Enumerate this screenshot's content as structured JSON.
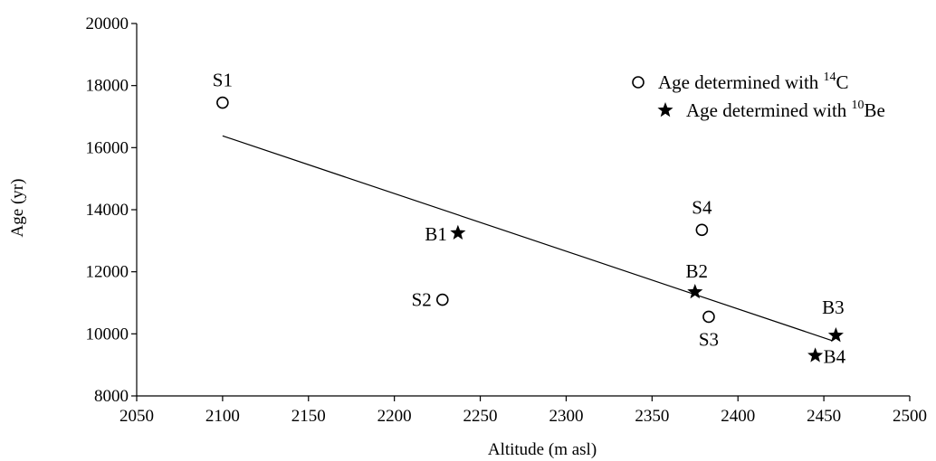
{
  "chart_data": {
    "type": "scatter",
    "xlabel": "Altitude (m asl)",
    "ylabel": "Age (yr)",
    "xlim": [
      2050,
      2500
    ],
    "ylim": [
      8000,
      20000
    ],
    "xticks": [
      2050,
      2100,
      2150,
      2200,
      2250,
      2300,
      2350,
      2400,
      2450,
      2500
    ],
    "yticks": [
      8000,
      10000,
      12000,
      14000,
      16000,
      18000,
      20000
    ],
    "grid": false,
    "legend_position": "top-right",
    "series": [
      {
        "name": "Age determined with 14C",
        "legend_main": "Age determined with ",
        "legend_sup": "14",
        "legend_tail": "C",
        "marker": "open-circle",
        "points": [
          {
            "label": "S1",
            "x": 2100,
            "y": 17450
          },
          {
            "label": "S2",
            "x": 2228,
            "y": 11100
          },
          {
            "label": "S3",
            "x": 2383,
            "y": 10550
          },
          {
            "label": "S4",
            "x": 2379,
            "y": 13350
          }
        ]
      },
      {
        "name": "Age determined with 10Be",
        "legend_main": "Age determined with ",
        "legend_sup": "10",
        "legend_tail": "Be",
        "marker": "star",
        "points": [
          {
            "label": "B1",
            "x": 2237,
            "y": 13250
          },
          {
            "label": "B2",
            "x": 2375,
            "y": 11350
          },
          {
            "label": "B3",
            "x": 2457,
            "y": 9950
          },
          {
            "label": "B4",
            "x": 2445,
            "y": 9300
          }
        ]
      }
    ],
    "trendline": {
      "x": [
        2100,
        2455
      ],
      "y": [
        16380,
        9780
      ]
    }
  }
}
